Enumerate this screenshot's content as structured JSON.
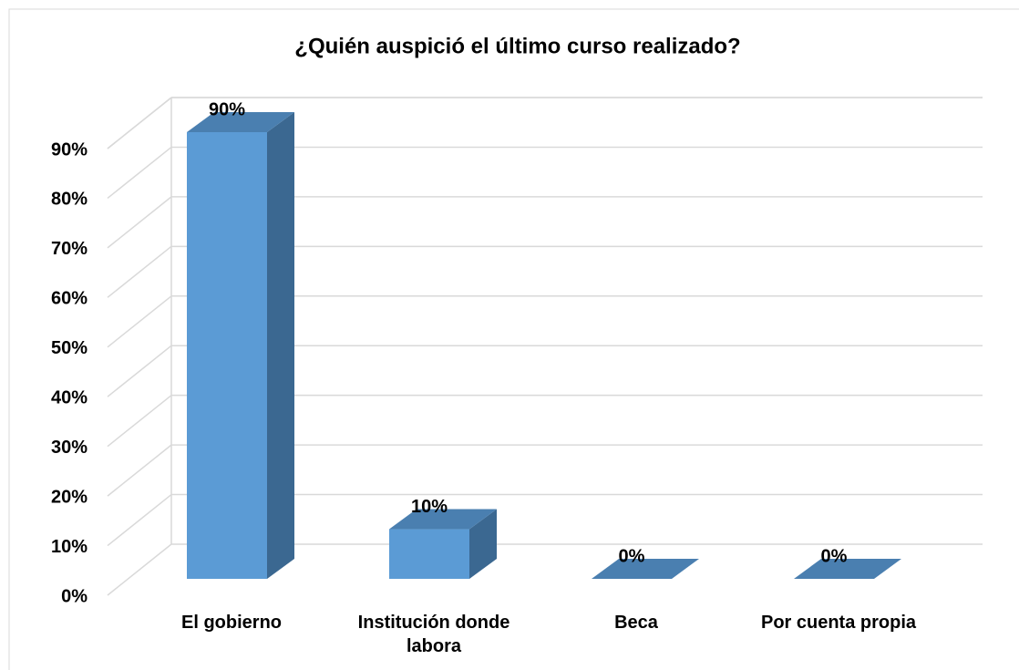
{
  "chart_data": {
    "type": "bar3d",
    "title": "¿Quién auspició el último curso realizado?",
    "categories": [
      "El gobierno",
      "Institución donde labora",
      "Beca",
      "Por cuenta propia"
    ],
    "values": [
      90,
      10,
      0,
      0
    ],
    "value_labels": [
      "90%",
      "10%",
      "0%",
      "0%"
    ],
    "color": "#5b9bd5",
    "ylim": [
      0,
      90
    ],
    "yticks": [
      {
        "value": 0,
        "label": "0%"
      },
      {
        "value": 10,
        "label": "10%"
      },
      {
        "value": 20,
        "label": "20%"
      },
      {
        "value": 30,
        "label": "30%"
      },
      {
        "value": 40,
        "label": "40%"
      },
      {
        "value": 50,
        "label": "50%"
      },
      {
        "value": 60,
        "label": "60%"
      },
      {
        "value": 70,
        "label": "70%"
      },
      {
        "value": 80,
        "label": "80%"
      },
      {
        "value": 90,
        "label": "90%"
      }
    ],
    "grid": true
  }
}
